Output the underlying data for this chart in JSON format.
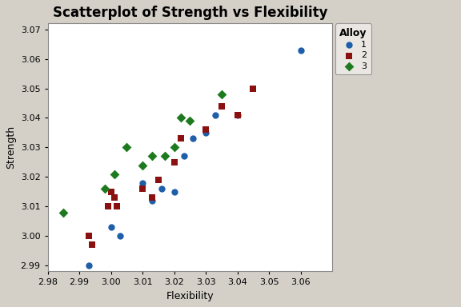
{
  "title": "Scatterplot of Strength vs Flexibility",
  "xlabel": "Flexibility",
  "ylabel": "Strength",
  "xlim": [
    2.98,
    3.07
  ],
  "ylim": [
    2.988,
    3.072
  ],
  "xticks": [
    2.98,
    2.99,
    3.0,
    3.01,
    3.02,
    3.03,
    3.04,
    3.05,
    3.06
  ],
  "yticks": [
    2.99,
    3.0,
    3.01,
    3.02,
    3.03,
    3.04,
    3.05,
    3.06,
    3.07
  ],
  "background_color": "#d4d0c8",
  "plot_bg_color": "#ffffff",
  "alloy1": {
    "color": "#1f5faa",
    "marker": "o",
    "label": "1",
    "x": [
      2.993,
      3.0,
      3.003,
      3.01,
      3.013,
      3.016,
      3.02,
      3.023,
      3.026,
      3.03,
      3.033,
      3.04,
      3.06
    ],
    "y": [
      2.99,
      3.003,
      3.0,
      3.018,
      3.012,
      3.016,
      3.015,
      3.027,
      3.033,
      3.035,
      3.041,
      3.041,
      3.063
    ]
  },
  "alloy2": {
    "color": "#8b1010",
    "marker": "s",
    "label": "2",
    "x": [
      2.993,
      2.994,
      2.999,
      3.0,
      3.001,
      3.002,
      3.01,
      3.013,
      3.015,
      3.02,
      3.022,
      3.03,
      3.035,
      3.04,
      3.045
    ],
    "y": [
      3.0,
      2.997,
      3.01,
      3.015,
      3.013,
      3.01,
      3.016,
      3.013,
      3.019,
      3.025,
      3.033,
      3.036,
      3.044,
      3.041,
      3.05
    ]
  },
  "alloy3": {
    "color": "#1e7a1e",
    "marker": "D",
    "label": "3",
    "x": [
      2.985,
      2.998,
      3.001,
      3.005,
      3.01,
      3.013,
      3.017,
      3.02,
      3.022,
      3.025,
      3.035
    ],
    "y": [
      3.008,
      3.016,
      3.021,
      3.03,
      3.024,
      3.027,
      3.027,
      3.03,
      3.04,
      3.039,
      3.048
    ]
  },
  "legend_title": "Alloy",
  "legend_bg": "#f0eeea",
  "title_fontsize": 12,
  "axis_fontsize": 9,
  "tick_fontsize": 8,
  "marker_size": 36
}
